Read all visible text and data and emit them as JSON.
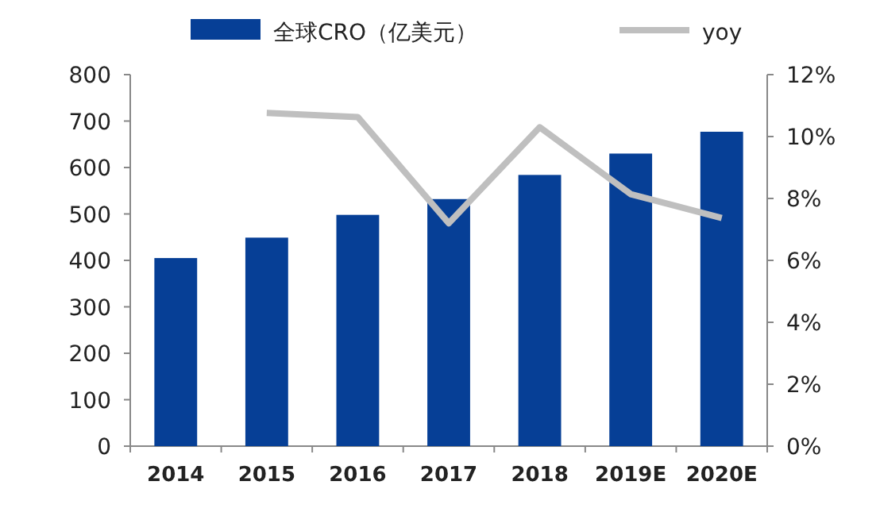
{
  "chart_data": {
    "type": "bar",
    "categories": [
      "2014",
      "2015",
      "2016",
      "2017",
      "2018",
      "2019E",
      "2020E"
    ],
    "series": [
      {
        "name": "全球CRO（亿美元）",
        "color": "#063f96",
        "values": [
          405,
          449,
          498,
          532,
          584,
          630,
          677
        ]
      },
      {
        "name": "yoy",
        "type": "line",
        "axis": "y2",
        "color": "#bfbfbf",
        "values": [
          null,
          10.76,
          10.63,
          7.2,
          10.3,
          8.14,
          7.37
        ]
      }
    ],
    "ylim": [
      0,
      800
    ],
    "yticks": [
      0,
      100,
      200,
      300,
      400,
      500,
      600,
      700,
      800
    ],
    "y2lim": [
      0,
      12
    ],
    "y2ticks": [
      {
        "value": 0,
        "label": "0%"
      },
      {
        "value": 2,
        "label": "2%"
      },
      {
        "value": 4,
        "label": "4%"
      },
      {
        "value": 6,
        "label": "6%"
      },
      {
        "value": 8,
        "label": "8%"
      },
      {
        "value": 10,
        "label": "10%"
      },
      {
        "value": 12,
        "label": "12%"
      }
    ],
    "legend": "top",
    "grid": false,
    "marker": "none",
    "line_style": "solid"
  }
}
